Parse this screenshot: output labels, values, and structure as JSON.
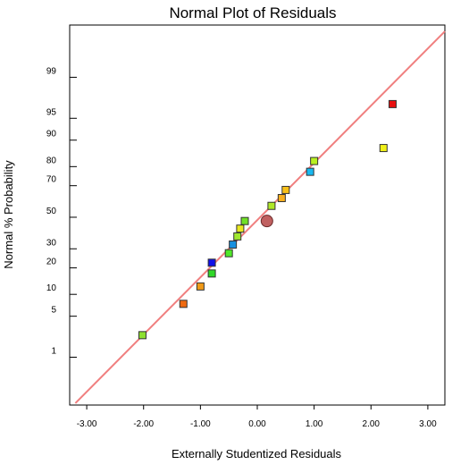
{
  "chart_data": {
    "type": "scatter",
    "title": "Normal Plot of Residuals",
    "xlabel": "Externally Studentized Residuals",
    "ylabel": "Normal % Probability",
    "xlim": [
      -3.3,
      3.3
    ],
    "x_ticks": [
      -3.0,
      -2.0,
      -1.0,
      0.0,
      1.0,
      2.0,
      3.0
    ],
    "x_tick_labels": [
      "-3.00",
      "-2.00",
      "-1.00",
      "0.00",
      "1.00",
      "2.00",
      "3.00"
    ],
    "y_scale": "normal-probability",
    "ylim_percent": [
      0.09,
      99.93
    ],
    "y_ticks": [
      1,
      5,
      10,
      20,
      30,
      50,
      70,
      80,
      90,
      95,
      99
    ],
    "y_tick_labels": [
      "1",
      "5",
      "10",
      "20",
      "30",
      "50",
      "70",
      "80",
      "90",
      "95",
      "99"
    ],
    "grid": false,
    "reference_line": {
      "color": "#f07f7f",
      "points": [
        {
          "x": -3.2,
          "p": 0.1
        },
        {
          "x": 3.3,
          "p": 99.9
        }
      ]
    },
    "points": [
      {
        "x": -2.02,
        "p": 2.5,
        "color": "#8ee030",
        "marker": "square"
      },
      {
        "x": -1.3,
        "p": 7.5,
        "color": "#f06a10",
        "marker": "square"
      },
      {
        "x": -1.0,
        "p": 12.5,
        "color": "#f09a18",
        "marker": "square"
      },
      {
        "x": -0.8,
        "p": 17.5,
        "color": "#30d828",
        "marker": "square"
      },
      {
        "x": -0.8,
        "p": 22.5,
        "color": "#1010e8",
        "marker": "square"
      },
      {
        "x": -0.5,
        "p": 27.5,
        "color": "#50e828",
        "marker": "square"
      },
      {
        "x": -0.43,
        "p": 32.5,
        "color": "#1890e0",
        "marker": "square"
      },
      {
        "x": -0.35,
        "p": 37.5,
        "color": "#a0e830",
        "marker": "square"
      },
      {
        "x": -0.3,
        "p": 42.5,
        "color": "#e8e820",
        "marker": "square"
      },
      {
        "x": -0.22,
        "p": 47.5,
        "color": "#70e028",
        "marker": "square"
      },
      {
        "x": 0.17,
        "p": 47.5,
        "color": "#c06060",
        "marker": "circle"
      },
      {
        "x": 0.25,
        "p": 57.5,
        "color": "#b0e828",
        "marker": "square"
      },
      {
        "x": 0.43,
        "p": 62.5,
        "color": "#f8b020",
        "marker": "square"
      },
      {
        "x": 0.5,
        "p": 67.5,
        "color": "#f8c018",
        "marker": "square"
      },
      {
        "x": 0.93,
        "p": 77.5,
        "color": "#18b8f0",
        "marker": "square"
      },
      {
        "x": 1.0,
        "p": 82.5,
        "color": "#b8f020",
        "marker": "square"
      },
      {
        "x": 2.22,
        "p": 87.5,
        "color": "#f0f018",
        "marker": "square"
      },
      {
        "x": 2.38,
        "p": 97.0,
        "color": "#e81010",
        "marker": "square"
      }
    ]
  }
}
